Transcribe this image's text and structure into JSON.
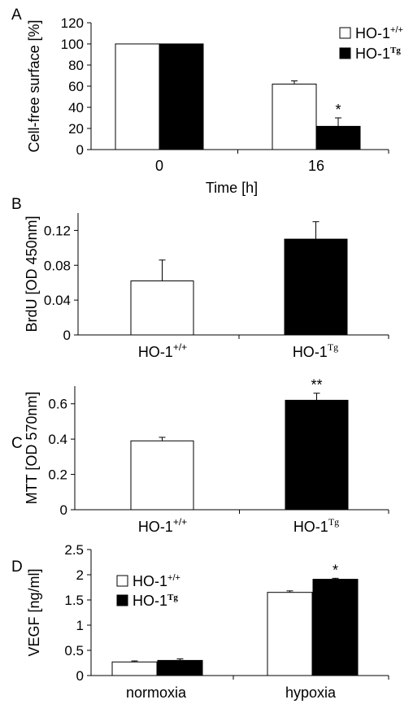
{
  "chart_data": [
    {
      "panel": "A",
      "type": "bar",
      "xlabel": "Time [h]",
      "ylabel": "Cell-free surface [%]",
      "categories": [
        "0",
        "16"
      ],
      "ylim": [
        0,
        120
      ],
      "yticks": [
        "0",
        "20",
        "40",
        "60",
        "80",
        "100",
        "120"
      ],
      "series": [
        {
          "name": "HO-1",
          "sup": "+/+",
          "color": "#ffffff",
          "values": [
            100,
            62
          ],
          "errors": [
            0,
            3
          ]
        },
        {
          "name": "HO-1",
          "sup": "Tg",
          "color": "#000000",
          "values": [
            100,
            22
          ],
          "errors": [
            0,
            8
          ]
        }
      ],
      "annotations": [
        {
          "category": 1,
          "series": 1,
          "text": "*"
        }
      ],
      "legend": "top-right"
    },
    {
      "panel": "B",
      "type": "bar",
      "ylabel": "BrdU [OD 450nm]",
      "categories": [
        {
          "main": "HO-1",
          "sup": "+/+"
        },
        {
          "main": "HO-1",
          "sup": "Tg"
        }
      ],
      "ylim": [
        0,
        0.14
      ],
      "yticks": [
        "0",
        "0.04",
        "0.08",
        "0.12"
      ],
      "values": [
        0.062,
        0.11
      ],
      "errors": [
        0.024,
        0.02
      ],
      "colors": [
        "#ffffff",
        "#000000"
      ]
    },
    {
      "panel": "C",
      "type": "bar",
      "ylabel": "MTT [OD 570nm]",
      "categories": [
        {
          "main": "HO-1",
          "sup": "+/+"
        },
        {
          "main": "HO-1",
          "sup": "Tg"
        }
      ],
      "ylim": [
        0,
        0.7
      ],
      "yticks": [
        "0",
        "0.2",
        "0.4",
        "0.6"
      ],
      "values": [
        0.39,
        0.62
      ],
      "errors": [
        0.02,
        0.04
      ],
      "colors": [
        "#ffffff",
        "#000000"
      ],
      "annotations": [
        {
          "category": 1,
          "text": "**"
        }
      ]
    },
    {
      "panel": "D",
      "type": "bar",
      "ylabel": "VEGF [ng/ml]",
      "categories": [
        "normoxia",
        "hypoxia"
      ],
      "ylim": [
        0,
        2.5
      ],
      "yticks": [
        "0",
        "0.5",
        "1",
        "1.5",
        "2",
        "2.5"
      ],
      "series": [
        {
          "name": "HO-1",
          "sup": "+/+",
          "color": "#ffffff",
          "values": [
            0.27,
            1.65
          ],
          "errors": [
            0.02,
            0.03
          ]
        },
        {
          "name": "HO-1",
          "sup": "Tg",
          "color": "#000000",
          "values": [
            0.3,
            1.91
          ],
          "errors": [
            0.03,
            0.02
          ]
        }
      ],
      "annotations": [
        {
          "category": 1,
          "series": 1,
          "text": "*"
        }
      ],
      "legend": "top-left"
    }
  ]
}
